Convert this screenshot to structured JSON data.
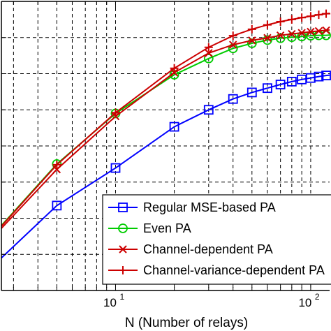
{
  "chart_data": {
    "type": "line",
    "title": "",
    "xlabel": "N (Number of relays)",
    "ylabel": "",
    "xscale": "log",
    "xlim": [
      2.6,
      125
    ],
    "ylim": [
      0,
      8
    ],
    "grid": true,
    "legend_position": "bottom-right",
    "x_tick_labels": [
      {
        "value": 10,
        "label": "10",
        "exp": "1"
      },
      {
        "value": 100,
        "label": "10",
        "exp": "2"
      }
    ],
    "series": [
      {
        "name": "Regular MSE-based PA",
        "color": "#0000ff",
        "marker": "square",
        "x": [
          2.6,
          5,
          10,
          20,
          30,
          40,
          50,
          60,
          70,
          80,
          90,
          100,
          110,
          120,
          125
        ],
        "y": [
          0.9,
          2.35,
          3.39,
          4.53,
          5.0,
          5.3,
          5.48,
          5.6,
          5.7,
          5.78,
          5.84,
          5.88,
          5.92,
          5.95,
          5.96
        ]
      },
      {
        "name": "Even PA",
        "color": "#00cc00",
        "marker": "circle",
        "x": [
          2.6,
          5,
          10,
          20,
          30,
          40,
          50,
          60,
          70,
          80,
          90,
          100,
          110,
          120,
          125
        ],
        "y": [
          1.8,
          3.5,
          4.9,
          5.97,
          6.42,
          6.7,
          6.84,
          6.93,
          6.98,
          7.01,
          7.03,
          7.05,
          7.06,
          7.06,
          7.07
        ]
      },
      {
        "name": "Channel-dependent PA",
        "color": "#cc0000",
        "marker": "x",
        "x": [
          2.6,
          5,
          10,
          20,
          30,
          40,
          50,
          60,
          70,
          80,
          90,
          100,
          110,
          120,
          125
        ],
        "y": [
          1.72,
          3.35,
          4.82,
          6.03,
          6.57,
          6.8,
          6.92,
          6.99,
          7.06,
          7.1,
          7.13,
          7.16,
          7.18,
          7.2,
          7.21
        ]
      },
      {
        "name": "Channel-variance-dependent PA",
        "color": "#cc0000",
        "marker": "plus",
        "x": [
          2.6,
          5,
          10,
          20,
          30,
          40,
          50,
          60,
          70,
          80,
          90,
          100,
          110,
          120,
          125
        ],
        "y": [
          1.78,
          3.48,
          4.92,
          6.15,
          6.73,
          7.05,
          7.23,
          7.35,
          7.44,
          7.5,
          7.55,
          7.59,
          7.63,
          7.66,
          7.67
        ]
      }
    ]
  }
}
